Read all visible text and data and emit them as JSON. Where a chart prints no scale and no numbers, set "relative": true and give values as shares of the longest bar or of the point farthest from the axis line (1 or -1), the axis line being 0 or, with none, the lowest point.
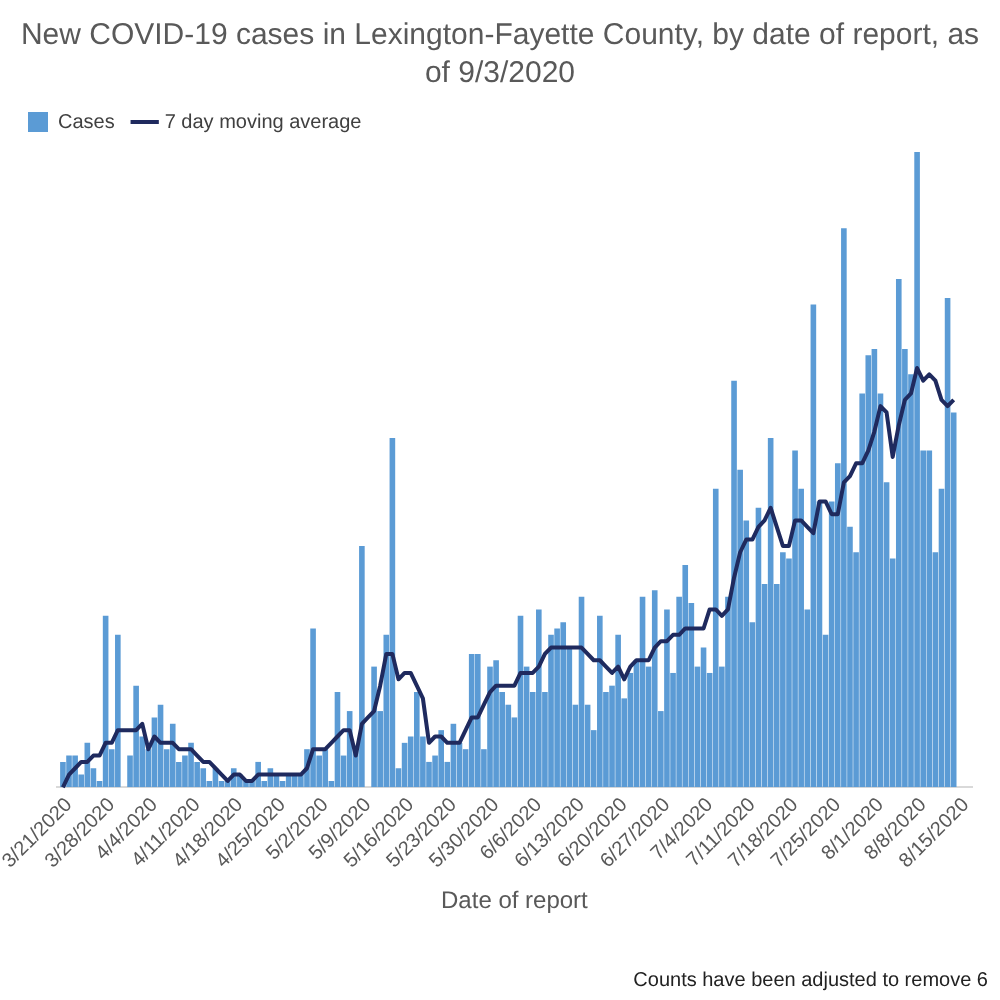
{
  "chart_data": {
    "type": "bar",
    "title": "New COVID-19 cases in Lexington-Fayette County, by date of report, as of 9/3/2020",
    "xlabel": "Date of report",
    "annotations": [
      "Counts have been adjusted to remove 6"
    ],
    "relative": true,
    "legend": "top left",
    "grid": false,
    "x": [
      "2020-03-20",
      "2020-03-21",
      "2020-03-22",
      "2020-03-23",
      "2020-03-24",
      "2020-03-25",
      "2020-03-26",
      "2020-03-27",
      "2020-03-28",
      "2020-03-29",
      "2020-03-30",
      "2020-03-31",
      "2020-04-01",
      "2020-04-02",
      "2020-04-03",
      "2020-04-04",
      "2020-04-05",
      "2020-04-06",
      "2020-04-07",
      "2020-04-08",
      "2020-04-09",
      "2020-04-10",
      "2020-04-11",
      "2020-04-12",
      "2020-04-13",
      "2020-04-14",
      "2020-04-15",
      "2020-04-16",
      "2020-04-17",
      "2020-04-18",
      "2020-04-19",
      "2020-04-20",
      "2020-04-21",
      "2020-04-22",
      "2020-04-23",
      "2020-04-24",
      "2020-04-25",
      "2020-04-26",
      "2020-04-27",
      "2020-04-28",
      "2020-04-29",
      "2020-04-30",
      "2020-05-01",
      "2020-05-02",
      "2020-05-03",
      "2020-05-04",
      "2020-05-05",
      "2020-05-06",
      "2020-05-07",
      "2020-05-08",
      "2020-05-09",
      "2020-05-10",
      "2020-05-11",
      "2020-05-12",
      "2020-05-13",
      "2020-05-14",
      "2020-05-15",
      "2020-05-16",
      "2020-05-17",
      "2020-05-18",
      "2020-05-19",
      "2020-05-20",
      "2020-05-21",
      "2020-05-22",
      "2020-05-23",
      "2020-05-24",
      "2020-05-25",
      "2020-05-26",
      "2020-05-27",
      "2020-05-28",
      "2020-05-29",
      "2020-05-30",
      "2020-05-31",
      "2020-06-01",
      "2020-06-02",
      "2020-06-03",
      "2020-06-04",
      "2020-06-05",
      "2020-06-06",
      "2020-06-07",
      "2020-06-08",
      "2020-06-09",
      "2020-06-10",
      "2020-06-11",
      "2020-06-12",
      "2020-06-13",
      "2020-06-14",
      "2020-06-15",
      "2020-06-16",
      "2020-06-17",
      "2020-06-18",
      "2020-06-19",
      "2020-06-20",
      "2020-06-21",
      "2020-06-22",
      "2020-06-23",
      "2020-06-24",
      "2020-06-25",
      "2020-06-26",
      "2020-06-27",
      "2020-06-28",
      "2020-06-29",
      "2020-06-30",
      "2020-07-01",
      "2020-07-02",
      "2020-07-03",
      "2020-07-04",
      "2020-07-05",
      "2020-07-06",
      "2020-07-07",
      "2020-07-08",
      "2020-07-09",
      "2020-07-10",
      "2020-07-11",
      "2020-07-12",
      "2020-07-13",
      "2020-07-14",
      "2020-07-15",
      "2020-07-16",
      "2020-07-17",
      "2020-07-18",
      "2020-07-19",
      "2020-07-20",
      "2020-07-21",
      "2020-07-22",
      "2020-07-23",
      "2020-07-24",
      "2020-07-25",
      "2020-07-26",
      "2020-07-27",
      "2020-07-28",
      "2020-07-29",
      "2020-07-30",
      "2020-07-31",
      "2020-08-01",
      "2020-08-02",
      "2020-08-03",
      "2020-08-04",
      "2020-08-05",
      "2020-08-06",
      "2020-08-07",
      "2020-08-08",
      "2020-08-09",
      "2020-08-10",
      "2020-08-11",
      "2020-08-12",
      "2020-08-13"
    ],
    "xlim": [
      "2020-03-19",
      "2020-08-16"
    ],
    "xticks": [
      {
        "value": "2020-03-21",
        "label": "3/21/2020"
      },
      {
        "value": "2020-03-28",
        "label": "3/28/2020"
      },
      {
        "value": "2020-04-04",
        "label": "4/4/2020"
      },
      {
        "value": "2020-04-11",
        "label": "4/11/2020"
      },
      {
        "value": "2020-04-18",
        "label": "4/18/2020"
      },
      {
        "value": "2020-04-25",
        "label": "4/25/2020"
      },
      {
        "value": "2020-05-02",
        "label": "5/2/2020"
      },
      {
        "value": "2020-05-09",
        "label": "5/9/2020"
      },
      {
        "value": "2020-05-16",
        "label": "5/16/2020"
      },
      {
        "value": "2020-05-23",
        "label": "5/23/2020"
      },
      {
        "value": "2020-05-30",
        "label": "5/30/2020"
      },
      {
        "value": "2020-06-06",
        "label": "6/6/2020"
      },
      {
        "value": "2020-06-13",
        "label": "6/13/2020"
      },
      {
        "value": "2020-06-20",
        "label": "6/20/2020"
      },
      {
        "value": "2020-06-27",
        "label": "6/27/2020"
      },
      {
        "value": "2020-07-04",
        "label": "7/4/2020"
      },
      {
        "value": "2020-07-11",
        "label": "7/11/2020"
      },
      {
        "value": "2020-07-18",
        "label": "7/18/2020"
      },
      {
        "value": "2020-07-25",
        "label": "7/25/2020"
      },
      {
        "value": "2020-08-01",
        "label": "8/1/2020"
      },
      {
        "value": "2020-08-08",
        "label": "8/8/2020"
      },
      {
        "value": "2020-08-15",
        "label": "8/15/2020"
      }
    ],
    "series": [
      {
        "name": "Cases",
        "color": "#5b9bd5",
        "values": [
          0.04,
          0.05,
          0.05,
          0.02,
          0.07,
          0.03,
          0.01,
          0.27,
          0.06,
          0.24,
          0,
          0.05,
          0.16,
          0.08,
          0.06,
          0.11,
          0.13,
          0.06,
          0.1,
          0.04,
          0.05,
          0.07,
          0.04,
          0.03,
          0.01,
          0.03,
          0.01,
          0.01,
          0.03,
          0.02,
          0.01,
          0.01,
          0.04,
          0.01,
          0.03,
          0.02,
          0.01,
          0.02,
          0.02,
          0.02,
          0.06,
          0.25,
          0.05,
          0.06,
          0.01,
          0.15,
          0.05,
          0.12,
          0.06,
          0.38,
          0,
          0.19,
          0.12,
          0.24,
          0.55,
          0.03,
          0.07,
          0.08,
          0.15,
          0.08,
          0.04,
          0.05,
          0.09,
          0.04,
          0.1,
          0.07,
          0.06,
          0.21,
          0.21,
          0.06,
          0.19,
          0.2,
          0.15,
          0.13,
          0.11,
          0.27,
          0.19,
          0.15,
          0.28,
          0.15,
          0.24,
          0.25,
          0.26,
          0.22,
          0.13,
          0.3,
          0.13,
          0.09,
          0.27,
          0.15,
          0.16,
          0.24,
          0.14,
          0.18,
          0.2,
          0.3,
          0.19,
          0.31,
          0.12,
          0.28,
          0.18,
          0.3,
          0.35,
          0.29,
          0.19,
          0.22,
          0.18,
          0.47,
          0.19,
          0.3,
          0.64,
          0.5,
          0.42,
          0.26,
          0.44,
          0.32,
          0.55,
          0.32,
          0.37,
          0.36,
          0.53,
          0.47,
          0.28,
          0.76,
          0.45,
          0.24,
          0.45,
          0.51,
          0.88,
          0.41,
          0.37,
          0.62,
          0.68,
          0.69,
          0.62,
          0.48,
          0.36,
          0.8,
          0.69,
          0.65,
          1,
          0.53,
          0.53,
          0.37,
          0.47,
          0.77,
          0.59
        ]
      },
      {
        "name": "7 day moving average",
        "type": "line",
        "color": "#1f2a5e",
        "values": [
          0,
          0.02,
          0.03,
          0.04,
          0.04,
          0.05,
          0.05,
          0.07,
          0.07,
          0.09,
          0.09,
          0.09,
          0.09,
          0.1,
          0.06,
          0.08,
          0.07,
          0.07,
          0.07,
          0.06,
          0.06,
          0.06,
          0.05,
          0.04,
          0.04,
          0.03,
          0.02,
          0.01,
          0.02,
          0.02,
          0.01,
          0.01,
          0.02,
          0.02,
          0.02,
          0.02,
          0.02,
          0.02,
          0.02,
          0.02,
          0.03,
          0.06,
          0.06,
          0.06,
          0.07,
          0.08,
          0.09,
          0.09,
          0.05,
          0.1,
          0.11,
          0.12,
          0.16,
          0.21,
          0.21,
          0.17,
          0.18,
          0.18,
          0.16,
          0.14,
          0.07,
          0.08,
          0.08,
          0.07,
          0.07,
          0.07,
          0.09,
          0.11,
          0.11,
          0.13,
          0.15,
          0.16,
          0.16,
          0.16,
          0.16,
          0.18,
          0.18,
          0.18,
          0.19,
          0.21,
          0.22,
          0.22,
          0.22,
          0.22,
          0.22,
          0.22,
          0.21,
          0.2,
          0.2,
          0.19,
          0.18,
          0.19,
          0.17,
          0.19,
          0.2,
          0.2,
          0.2,
          0.22,
          0.23,
          0.23,
          0.24,
          0.24,
          0.25,
          0.25,
          0.25,
          0.25,
          0.28,
          0.28,
          0.27,
          0.28,
          0.33,
          0.37,
          0.39,
          0.39,
          0.41,
          0.42,
          0.44,
          0.41,
          0.38,
          0.38,
          0.42,
          0.42,
          0.41,
          0.4,
          0.45,
          0.45,
          0.43,
          0.43,
          0.48,
          0.49,
          0.51,
          0.51,
          0.53,
          0.56,
          0.6,
          0.59,
          0.52,
          0.57,
          0.61,
          0.62,
          0.66,
          0.64,
          0.65,
          0.64,
          0.61,
          0.6,
          0.61
        ]
      }
    ]
  }
}
